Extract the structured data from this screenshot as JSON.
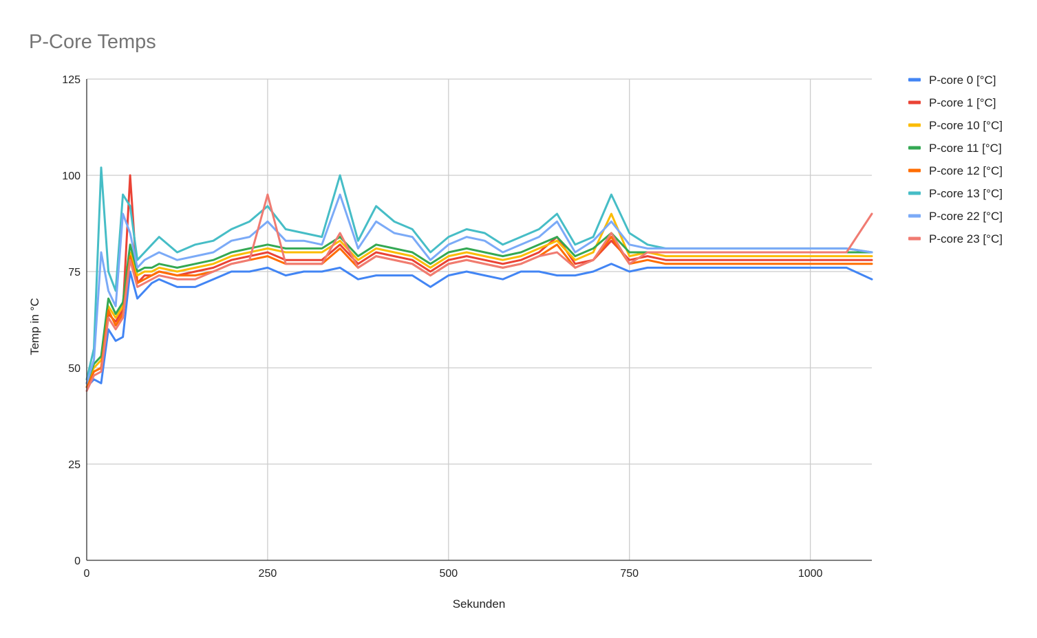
{
  "chart_data": {
    "type": "line",
    "title": "P-Core Temps",
    "xlabel": "Sekunden",
    "ylabel": "Temp in °C",
    "xlim": [
      0,
      1085
    ],
    "ylim": [
      0,
      125
    ],
    "xticks": [
      0,
      250,
      500,
      750,
      1000
    ],
    "yticks": [
      0,
      25,
      50,
      75,
      100,
      125
    ],
    "grid": true,
    "legend_position": "right",
    "series": [
      {
        "name": "P-core 0 [°C]",
        "color": "#4285F4",
        "x": [
          0,
          10,
          20,
          30,
          40,
          50,
          60,
          70,
          80,
          90,
          100,
          125,
          150,
          175,
          200,
          225,
          250,
          275,
          300,
          325,
          350,
          375,
          400,
          425,
          450,
          475,
          500,
          525,
          550,
          575,
          600,
          625,
          650,
          675,
          700,
          725,
          750,
          775,
          800,
          825,
          850,
          875,
          900,
          925,
          950,
          975,
          1000,
          1025,
          1050,
          1085
        ],
        "y": [
          45,
          47,
          46,
          60,
          57,
          58,
          75,
          68,
          70,
          72,
          73,
          71,
          71,
          73,
          75,
          75,
          76,
          74,
          75,
          75,
          76,
          73,
          74,
          74,
          74,
          71,
          74,
          75,
          74,
          73,
          75,
          75,
          74,
          74,
          75,
          77,
          75,
          76,
          76,
          76,
          76,
          76,
          76,
          76,
          76,
          76,
          76,
          76,
          76,
          73
        ]
      },
      {
        "name": "P-core 1 [°C]",
        "color": "#EA4335",
        "x": [
          0,
          10,
          20,
          30,
          40,
          50,
          60,
          70,
          80,
          90,
          100,
          125,
          150,
          175,
          200,
          225,
          250,
          275,
          300,
          325,
          350,
          375,
          400,
          425,
          450,
          475,
          500,
          525,
          550,
          575,
          600,
          625,
          650,
          675,
          700,
          725,
          750,
          775,
          800,
          825,
          850,
          875,
          900,
          925,
          950,
          975,
          1000,
          1025,
          1050,
          1085
        ],
        "y": [
          46,
          49,
          50,
          64,
          62,
          65,
          100,
          72,
          74,
          74,
          75,
          74,
          75,
          76,
          78,
          79,
          80,
          78,
          78,
          78,
          82,
          77,
          80,
          79,
          78,
          75,
          78,
          79,
          78,
          77,
          78,
          80,
          84,
          77,
          78,
          83,
          78,
          79,
          78,
          78,
          78,
          78,
          78,
          78,
          78,
          78,
          78,
          78,
          78,
          78
        ]
      },
      {
        "name": "P-core 10 [°C]",
        "color": "#FBBC04",
        "x": [
          0,
          10,
          20,
          30,
          40,
          50,
          60,
          70,
          80,
          90,
          100,
          125,
          150,
          175,
          200,
          225,
          250,
          275,
          300,
          325,
          350,
          375,
          400,
          425,
          450,
          475,
          500,
          525,
          550,
          575,
          600,
          625,
          650,
          675,
          700,
          725,
          750,
          775,
          800,
          825,
          850,
          875,
          900,
          925,
          950,
          975,
          1000,
          1025,
          1050,
          1085
        ],
        "y": [
          46,
          50,
          52,
          66,
          63,
          66,
          80,
          74,
          75,
          75,
          76,
          75,
          76,
          77,
          79,
          80,
          81,
          80,
          80,
          80,
          83,
          78,
          81,
          80,
          79,
          76,
          79,
          80,
          79,
          78,
          79,
          81,
          83,
          78,
          80,
          90,
          79,
          80,
          79,
          79,
          79,
          79,
          79,
          79,
          79,
          79,
          79,
          79,
          79,
          79
        ]
      },
      {
        "name": "P-core 11 [°C]",
        "color": "#34A853",
        "x": [
          0,
          10,
          20,
          30,
          40,
          50,
          60,
          70,
          80,
          90,
          100,
          125,
          150,
          175,
          200,
          225,
          250,
          275,
          300,
          325,
          350,
          375,
          400,
          425,
          450,
          475,
          500,
          525,
          550,
          575,
          600,
          625,
          650,
          675,
          700,
          725,
          750,
          775,
          800,
          825,
          850,
          875,
          900,
          925,
          950,
          975,
          1000,
          1025,
          1050,
          1085
        ],
        "y": [
          46,
          51,
          53,
          68,
          64,
          67,
          82,
          75,
          76,
          76,
          77,
          76,
          77,
          78,
          80,
          81,
          82,
          81,
          81,
          81,
          84,
          79,
          82,
          81,
          80,
          77,
          80,
          81,
          80,
          79,
          80,
          82,
          84,
          79,
          81,
          85,
          80,
          80,
          80,
          80,
          80,
          80,
          80,
          80,
          80,
          80,
          80,
          80,
          80,
          80
        ]
      },
      {
        "name": "P-core 12 [°C]",
        "color": "#FF6D01",
        "x": [
          0,
          10,
          20,
          30,
          40,
          50,
          60,
          70,
          80,
          90,
          100,
          125,
          150,
          175,
          200,
          225,
          250,
          275,
          300,
          325,
          350,
          375,
          400,
          425,
          450,
          475,
          500,
          525,
          550,
          575,
          600,
          625,
          650,
          675,
          700,
          725,
          750,
          775,
          800,
          825,
          850,
          875,
          900,
          925,
          950,
          975,
          1000,
          1025,
          1050,
          1085
        ],
        "y": [
          45,
          49,
          50,
          65,
          61,
          64,
          79,
          72,
          73,
          74,
          75,
          74,
          74,
          75,
          77,
          78,
          79,
          77,
          77,
          77,
          81,
          76,
          79,
          78,
          77,
          74,
          77,
          78,
          77,
          76,
          77,
          79,
          82,
          76,
          78,
          84,
          77,
          78,
          77,
          77,
          77,
          77,
          77,
          77,
          77,
          77,
          77,
          77,
          77,
          77
        ]
      },
      {
        "name": "P-core 13 [°C]",
        "color": "#46BDC6",
        "x": [
          0,
          10,
          20,
          30,
          40,
          50,
          60,
          70,
          80,
          90,
          100,
          125,
          150,
          175,
          200,
          225,
          250,
          275,
          300,
          325,
          350,
          375,
          400,
          425,
          450,
          475,
          500,
          525,
          550,
          575,
          600,
          625,
          650,
          675,
          700,
          725,
          750,
          775,
          800,
          825,
          850,
          875,
          900,
          925,
          950,
          975,
          1000,
          1025,
          1050,
          1085
        ],
        "y": [
          47,
          55,
          102,
          75,
          70,
          95,
          92,
          78,
          80,
          82,
          84,
          80,
          82,
          83,
          86,
          88,
          92,
          86,
          85,
          84,
          100,
          83,
          92,
          88,
          86,
          80,
          84,
          86,
          85,
          82,
          84,
          86,
          90,
          82,
          84,
          95,
          85,
          82,
          81,
          81,
          81,
          81,
          81,
          81,
          81,
          81,
          81,
          81,
          81,
          80
        ]
      },
      {
        "name": "P-core 22 [°C]",
        "color": "#7BAAF7",
        "x": [
          0,
          10,
          20,
          30,
          40,
          50,
          60,
          70,
          80,
          90,
          100,
          125,
          150,
          175,
          200,
          225,
          250,
          275,
          300,
          325,
          350,
          375,
          400,
          425,
          450,
          475,
          500,
          525,
          550,
          575,
          600,
          625,
          650,
          675,
          700,
          725,
          750,
          775,
          800,
          825,
          850,
          875,
          900,
          925,
          950,
          975,
          1000,
          1025,
          1050,
          1085
        ],
        "y": [
          46,
          52,
          80,
          70,
          66,
          90,
          85,
          76,
          78,
          79,
          80,
          78,
          79,
          80,
          83,
          84,
          88,
          83,
          83,
          82,
          95,
          81,
          88,
          85,
          84,
          78,
          82,
          84,
          83,
          80,
          82,
          84,
          88,
          80,
          83,
          88,
          82,
          81,
          81,
          81,
          81,
          81,
          81,
          81,
          81,
          81,
          81,
          81,
          81,
          80
        ]
      },
      {
        "name": "P-core 23 [°C]",
        "color": "#F07B72",
        "x": [
          0,
          10,
          20,
          30,
          40,
          50,
          60,
          70,
          80,
          90,
          100,
          125,
          150,
          175,
          200,
          225,
          250,
          275,
          300,
          325,
          350,
          375,
          400,
          425,
          450,
          475,
          500,
          525,
          550,
          575,
          600,
          625,
          650,
          675,
          700,
          725,
          750,
          775,
          800,
          825,
          850,
          875,
          900,
          925,
          950,
          975,
          1000,
          1025,
          1050,
          1085
        ],
        "y": [
          44,
          48,
          49,
          63,
          60,
          63,
          78,
          71,
          72,
          73,
          74,
          73,
          73,
          75,
          77,
          78,
          95,
          77,
          77,
          77,
          85,
          76,
          79,
          78,
          77,
          74,
          77,
          78,
          77,
          76,
          77,
          79,
          80,
          76,
          78,
          85,
          77,
          80,
          80,
          80,
          80,
          80,
          80,
          80,
          80,
          80,
          80,
          80,
          80,
          90
        ]
      }
    ]
  }
}
